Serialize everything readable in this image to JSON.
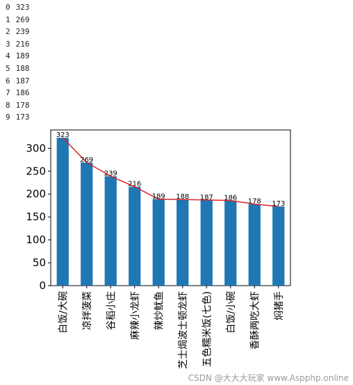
{
  "console_output": [
    {
      "index": "0",
      "value": "323"
    },
    {
      "index": "1",
      "value": "269"
    },
    {
      "index": "2",
      "value": "239"
    },
    {
      "index": "3",
      "value": "216"
    },
    {
      "index": "4",
      "value": "189"
    },
    {
      "index": "5",
      "value": "188"
    },
    {
      "index": "6",
      "value": "187"
    },
    {
      "index": "7",
      "value": "186"
    },
    {
      "index": "8",
      "value": "178"
    },
    {
      "index": "9",
      "value": "173"
    }
  ],
  "watermark": "CSDN @大大大玩家  www.Aspphp.online",
  "chart_data": {
    "type": "bar",
    "title": "",
    "xlabel": "",
    "ylabel": "",
    "categories": [
      "白饭/大碗",
      "凉拌菠菜",
      "谷稻小庄",
      "麻辣小龙虾",
      "辣炒鱿鱼",
      "芝士焗波士顿龙虾",
      "五色糯米饭(七色)",
      "白饭/小碗",
      "香酥两吃大虾",
      "焖猪手"
    ],
    "values": [
      323,
      269,
      239,
      216,
      189,
      188,
      187,
      186,
      178,
      173
    ],
    "line_overlay": true,
    "data_labels": [
      "323",
      "269",
      "239",
      "216",
      "189",
      "188",
      "187",
      "186",
      "178",
      "173"
    ],
    "ylim": [
      0,
      340
    ],
    "yticks": [
      0,
      50,
      100,
      150,
      200,
      250,
      300
    ],
    "grid": false,
    "bar_color": "#1f77b4",
    "line_color": "#d62728"
  }
}
